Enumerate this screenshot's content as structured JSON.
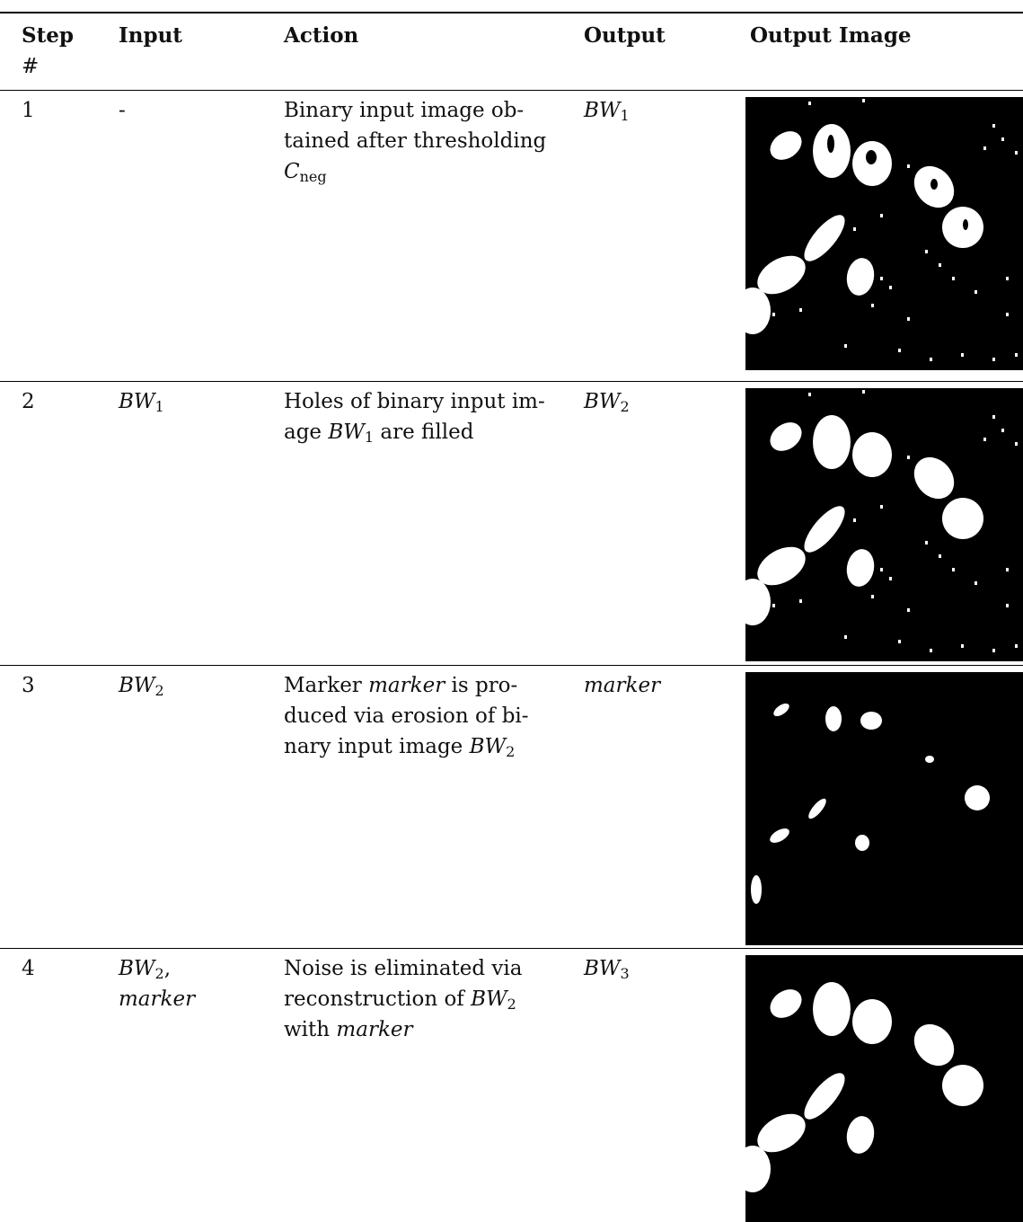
{
  "table": {
    "headers": [
      "Step",
      "#",
      "Input",
      "Action",
      "Output",
      "Output Image"
    ],
    "rows": [
      {
        "step": "1",
        "input": [
          [
            "-"
          ]
        ],
        "action": [
          [
            "Binary input image ob-"
          ],
          [
            "tained after thresholding"
          ],
          [
            {
              "v": "C",
              "sub": "neg"
            }
          ]
        ],
        "output": [
          {
            "v": "BW",
            "sub": "1"
          }
        ]
      },
      {
        "step": "2",
        "input": [
          [
            {
              "v": "BW",
              "sub": "1"
            }
          ]
        ],
        "action": [
          [
            "Holes of binary input im-"
          ],
          [
            "age ",
            {
              "v": "BW",
              "sub": "1"
            },
            " are filled"
          ]
        ],
        "output": [
          {
            "v": "BW",
            "sub": "2"
          }
        ]
      },
      {
        "step": "3",
        "input": [
          [
            {
              "v": "BW",
              "sub": "2"
            }
          ]
        ],
        "action": [
          [
            "Marker ",
            {
              "v": "marker"
            },
            " is pro-"
          ],
          [
            "duced via erosion of bi-"
          ],
          [
            "nary input image ",
            {
              "v": "BW",
              "sub": "2"
            }
          ]
        ],
        "output": [
          {
            "v": "marker"
          }
        ]
      },
      {
        "step": "4",
        "input": [
          [
            {
              "v": "BW",
              "sub": "2"
            },
            ","
          ],
          [
            {
              "v": "marker"
            }
          ]
        ],
        "action": [
          [
            "Noise is eliminated via"
          ],
          [
            "reconstruction of ",
            {
              "v": "BW",
              "sub": "2"
            }
          ],
          [
            "with ",
            {
              "v": "marker"
            }
          ]
        ],
        "output": [
          {
            "v": "BW",
            "sub": "3"
          }
        ]
      }
    ]
  }
}
